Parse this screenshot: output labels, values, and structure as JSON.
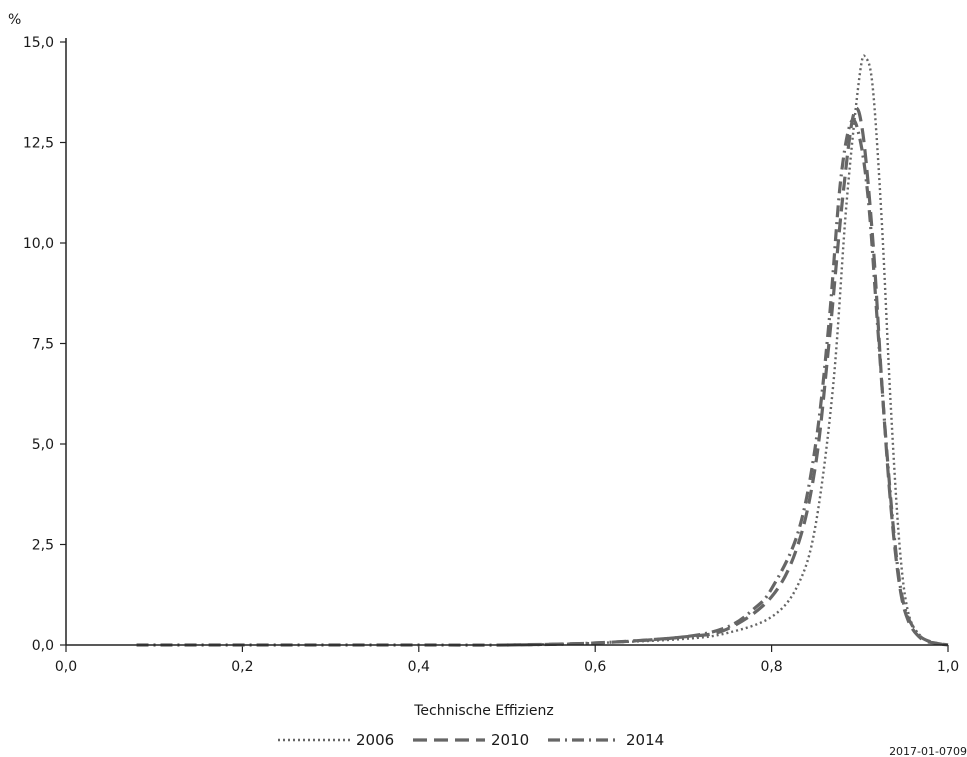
{
  "chart_data": {
    "type": "line",
    "title": "",
    "ylabel": "%",
    "xlabel": "Technische Effizienz",
    "xlim": [
      0.0,
      1.0
    ],
    "ylim": [
      0.0,
      15.0
    ],
    "grid": false,
    "legend_position": "bottom",
    "x_ticks": [
      0.0,
      0.2,
      0.4,
      0.6,
      0.8,
      1.0
    ],
    "x_tick_labels": [
      "0,0",
      "0,2",
      "0,4",
      "0,6",
      "0,8",
      "1,0"
    ],
    "y_ticks": [
      0.0,
      2.5,
      5.0,
      7.5,
      10.0,
      12.5,
      15.0
    ],
    "y_tick_labels": [
      "0,0",
      "2,5",
      "5,0",
      "7,5",
      "10,0",
      "12,5",
      "15,0"
    ],
    "footnote": "2017-01-0709",
    "series": [
      {
        "name": "2006",
        "style": "dotted",
        "color": "#666666",
        "points": [
          [
            0.5,
            0.0
          ],
          [
            0.6,
            0.05
          ],
          [
            0.7,
            0.15
          ],
          [
            0.75,
            0.3
          ],
          [
            0.8,
            0.7
          ],
          [
            0.83,
            1.5
          ],
          [
            0.85,
            3.0
          ],
          [
            0.87,
            6.5
          ],
          [
            0.885,
            11.0
          ],
          [
            0.9,
            14.2
          ],
          [
            0.907,
            14.6
          ],
          [
            0.915,
            13.8
          ],
          [
            0.925,
            10.5
          ],
          [
            0.935,
            6.0
          ],
          [
            0.945,
            2.5
          ],
          [
            0.955,
            0.8
          ],
          [
            0.97,
            0.2
          ],
          [
            0.985,
            0.05
          ],
          [
            1.0,
            0.0
          ]
        ]
      },
      {
        "name": "2010",
        "style": "dashed",
        "color": "#666666",
        "points": [
          [
            0.5,
            0.0
          ],
          [
            0.6,
            0.05
          ],
          [
            0.7,
            0.2
          ],
          [
            0.75,
            0.4
          ],
          [
            0.8,
            1.2
          ],
          [
            0.83,
            2.5
          ],
          [
            0.85,
            4.5
          ],
          [
            0.865,
            7.5
          ],
          [
            0.88,
            11.0
          ],
          [
            0.893,
            13.2
          ],
          [
            0.903,
            12.8
          ],
          [
            0.915,
            10.0
          ],
          [
            0.925,
            6.5
          ],
          [
            0.935,
            3.5
          ],
          [
            0.945,
            1.5
          ],
          [
            0.955,
            0.6
          ],
          [
            0.97,
            0.15
          ],
          [
            0.985,
            0.05
          ],
          [
            1.0,
            0.0
          ]
        ]
      },
      {
        "name": "2014",
        "style": "dash-dot",
        "color": "#666666",
        "points": [
          [
            0.08,
            0.0
          ],
          [
            0.2,
            0.0
          ],
          [
            0.3,
            0.0
          ],
          [
            0.4,
            0.0
          ],
          [
            0.5,
            0.0
          ],
          [
            0.6,
            0.05
          ],
          [
            0.7,
            0.2
          ],
          [
            0.75,
            0.45
          ],
          [
            0.78,
            0.9
          ],
          [
            0.8,
            1.4
          ],
          [
            0.83,
            2.8
          ],
          [
            0.85,
            5.0
          ],
          [
            0.865,
            8.0
          ],
          [
            0.878,
            11.5
          ],
          [
            0.89,
            13.0
          ],
          [
            0.9,
            12.6
          ],
          [
            0.91,
            11.0
          ],
          [
            0.92,
            8.0
          ],
          [
            0.93,
            5.0
          ],
          [
            0.94,
            2.5
          ],
          [
            0.95,
            1.0
          ],
          [
            0.965,
            0.3
          ],
          [
            0.98,
            0.08
          ],
          [
            1.0,
            0.0
          ]
        ]
      }
    ]
  }
}
